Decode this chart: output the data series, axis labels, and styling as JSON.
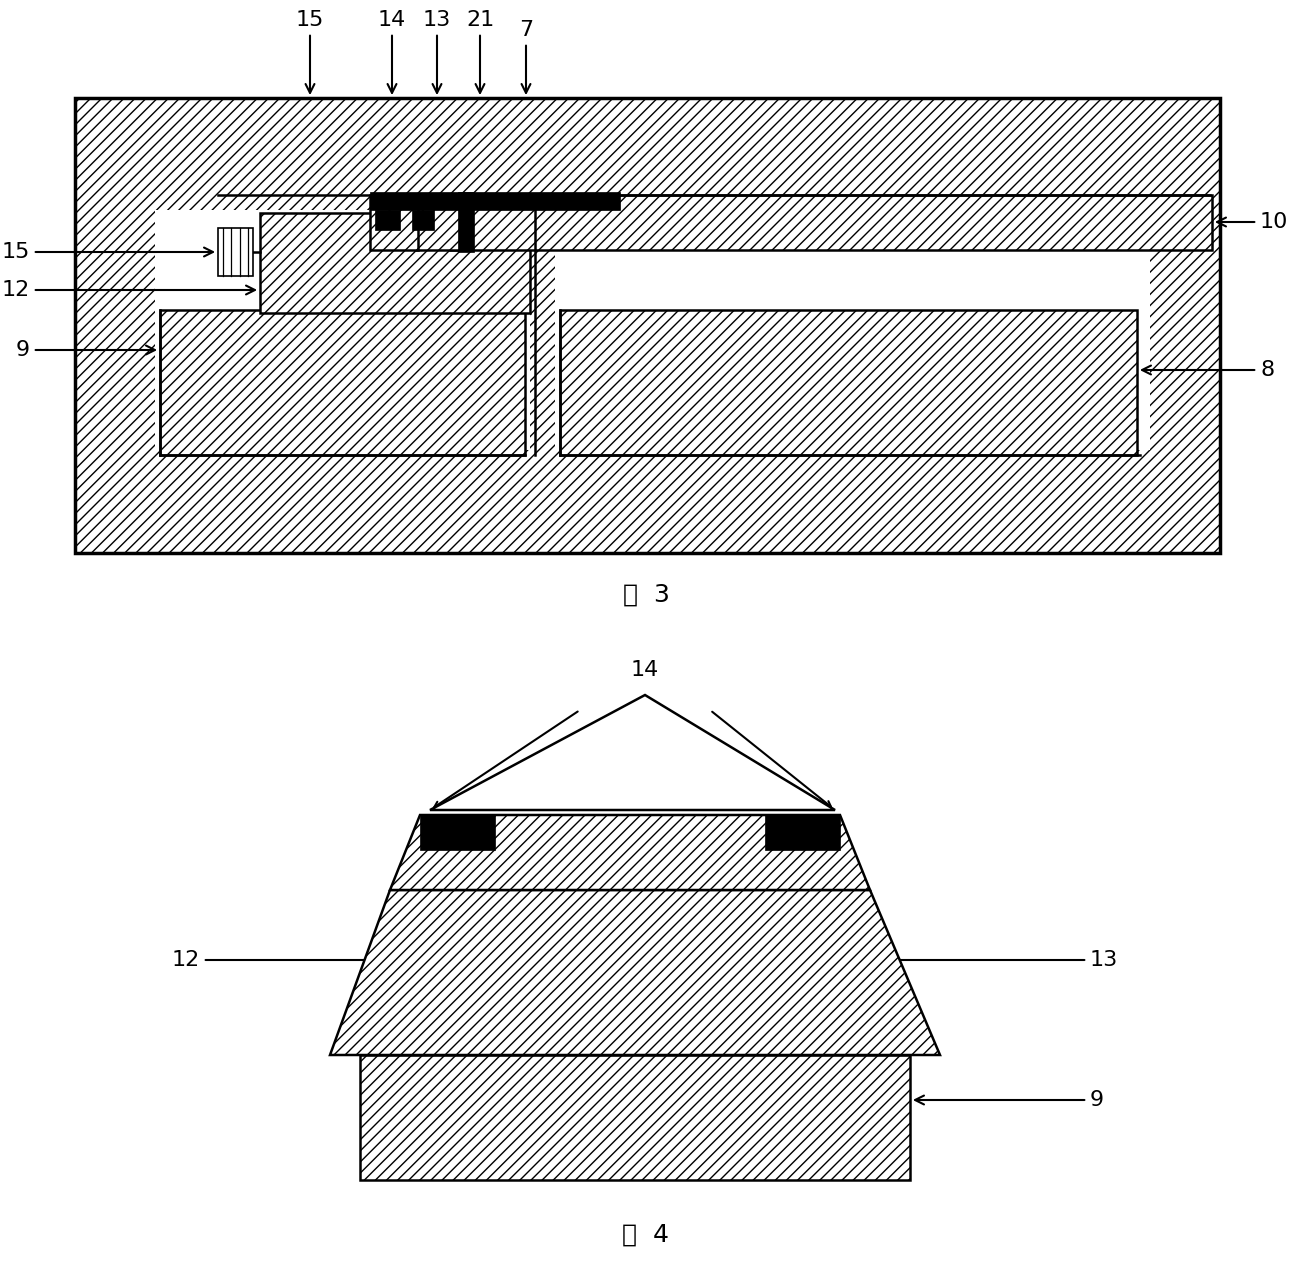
{
  "fig_width": 12.92,
  "fig_height": 12.84,
  "bg_color": "#ffffff",
  "line_color": "#000000",
  "fig3_caption": "图  3",
  "fig4_caption": "图  4"
}
